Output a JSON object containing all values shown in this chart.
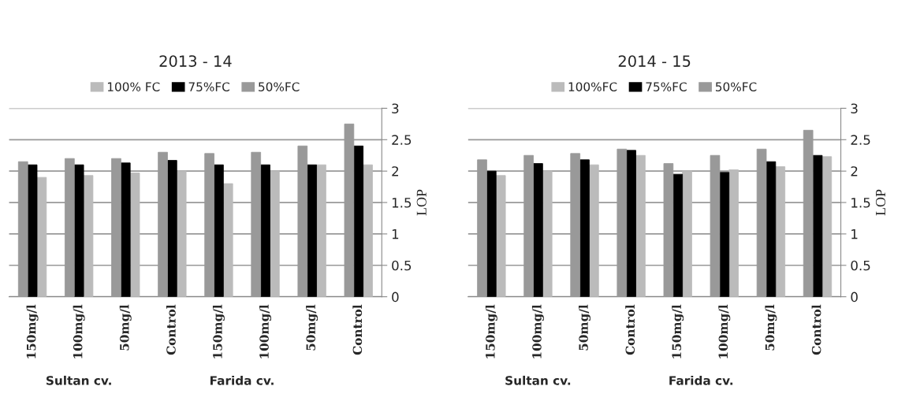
{
  "chart_data": [
    {
      "type": "bar",
      "title": "2013 - 14",
      "ylabel": "LOP",
      "categories": [
        "150mg/l",
        "100mg/l",
        "50mg/l",
        "Control",
        "150mg/l",
        "100mg/l",
        "50mg/l",
        "Control"
      ],
      "annotations": [
        "Sultan cv.",
        "Farida cv."
      ],
      "ylim": [
        0,
        3
      ],
      "yticks": [
        0,
        0.5,
        1,
        1.5,
        2,
        2.5,
        3
      ],
      "grid": "y",
      "legend": "top",
      "series": [
        {
          "name": "100% FC",
          "color": "#bbbbbb",
          "values": [
            1.9,
            1.93,
            1.97,
            2.0,
            1.8,
            2.0,
            2.1,
            2.1
          ]
        },
        {
          "name": "75%FC",
          "color": "#000000",
          "values": [
            2.1,
            2.1,
            2.13,
            2.17,
            2.1,
            2.1,
            2.1,
            2.4
          ]
        },
        {
          "name": "50%FC",
          "color": "#999999",
          "values": [
            2.15,
            2.2,
            2.2,
            2.3,
            2.28,
            2.3,
            2.4,
            2.75
          ]
        }
      ]
    },
    {
      "type": "bar",
      "title": "2014 - 15",
      "ylabel": "LOP",
      "categories": [
        "150mg/l",
        "100mg/l",
        "50mg/l",
        "Control",
        "150mg/l",
        "100mg/l",
        "50mg/l",
        "Control"
      ],
      "annotations": [
        "Sultan cv.",
        "Farida cv."
      ],
      "ylim": [
        0,
        3
      ],
      "yticks": [
        0,
        0.5,
        1,
        1.5,
        2,
        2.5,
        3
      ],
      "grid": "y",
      "legend": "top",
      "series": [
        {
          "name": "100%FC",
          "color": "#bbbbbb",
          "values": [
            1.93,
            2.0,
            2.1,
            2.25,
            2.0,
            2.02,
            2.07,
            2.23
          ]
        },
        {
          "name": "75%FC",
          "color": "#000000",
          "values": [
            2.0,
            2.12,
            2.18,
            2.33,
            1.95,
            1.98,
            2.15,
            2.25
          ]
        },
        {
          "name": "50%FC",
          "color": "#999999",
          "values": [
            2.18,
            2.25,
            2.28,
            2.35,
            2.12,
            2.25,
            2.35,
            2.65
          ]
        }
      ]
    }
  ]
}
